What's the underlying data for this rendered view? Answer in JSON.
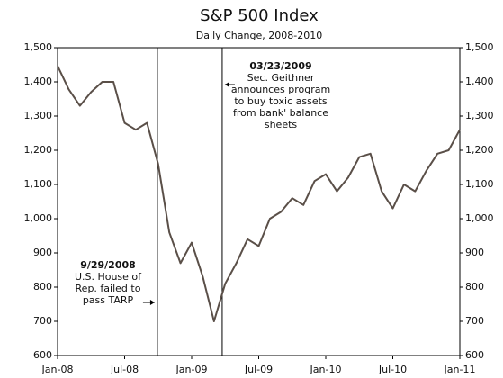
{
  "chart_data": {
    "type": "line",
    "title": "S&P 500 Index",
    "subtitle": "Daily Change, 2008-2010",
    "x": [
      "2008-01",
      "2008-02",
      "2008-03",
      "2008-04",
      "2008-05",
      "2008-06",
      "2008-07",
      "2008-08",
      "2008-09",
      "2008-10",
      "2008-11",
      "2008-12",
      "2009-01",
      "2009-02",
      "2009-03",
      "2009-04",
      "2009-05",
      "2009-06",
      "2009-07",
      "2009-08",
      "2009-09",
      "2009-10",
      "2009-11",
      "2009-12",
      "2010-01",
      "2010-02",
      "2010-03",
      "2010-04",
      "2010-05",
      "2010-06",
      "2010-07",
      "2010-08",
      "2010-09",
      "2010-10",
      "2010-11",
      "2010-12",
      "2011-01"
    ],
    "series": [
      {
        "color": "#5a4f48",
        "values": [
          1447,
          1378,
          1330,
          1370,
          1400,
          1400,
          1280,
          1260,
          1280,
          1160,
          960,
          870,
          930,
          830,
          700,
          810,
          870,
          940,
          920,
          1000,
          1020,
          1060,
          1040,
          1110,
          1130,
          1080,
          1120,
          1180,
          1190,
          1080,
          1030,
          1100,
          1080,
          1140,
          1190,
          1200,
          1260
        ]
      }
    ],
    "xlim": [
      "2008-01",
      "2011-01"
    ],
    "xticks": [
      {
        "value": "2008-01",
        "label": "Jan-08"
      },
      {
        "value": "2008-07",
        "label": "Jul-08"
      },
      {
        "value": "2009-01",
        "label": "Jan-09"
      },
      {
        "value": "2009-07",
        "label": "Jul-09"
      },
      {
        "value": "2010-01",
        "label": "Jan-10"
      },
      {
        "value": "2010-07",
        "label": "Jul-10"
      },
      {
        "value": "2011-01",
        "label": "Jan-11"
      }
    ],
    "ylim": [
      600,
      1500
    ],
    "yticks": [
      {
        "value": 600,
        "label": "600"
      },
      {
        "value": 700,
        "label": "700"
      },
      {
        "value": 800,
        "label": "800"
      },
      {
        "value": 900,
        "label": "900"
      },
      {
        "value": 1000,
        "label": "1,000"
      },
      {
        "value": 1100,
        "label": "1,100"
      },
      {
        "value": 1200,
        "label": "1,200"
      },
      {
        "value": 1300,
        "label": "1,300"
      },
      {
        "value": 1400,
        "label": "1,400"
      },
      {
        "value": 1500,
        "label": "1,500"
      }
    ],
    "annotations": [
      {
        "date": "9/29/2008",
        "lines": [
          "U.S. House of",
          "Rep. failed to",
          "pass TARP"
        ]
      },
      {
        "date": "03/23/2009",
        "lines": [
          "Sec. Geithner",
          "announces program",
          "to buy toxic assets",
          "from bank' balance",
          "sheets"
        ]
      }
    ]
  }
}
